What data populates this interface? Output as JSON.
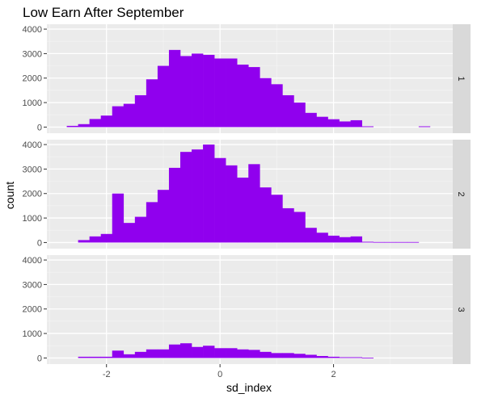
{
  "chart_data": {
    "type": "histogram",
    "title": "Low Earn After September",
    "xlabel": "sd_index",
    "ylabel": "count",
    "xlim": [
      -3.05,
      4.1
    ],
    "ylim": [
      -250,
      4200
    ],
    "x_ticks": [
      {
        "value": -2,
        "label": "-2"
      },
      {
        "value": 0,
        "label": "0"
      },
      {
        "value": 2,
        "label": "2"
      }
    ],
    "y_ticks": [
      {
        "value": 0,
        "label": "0"
      },
      {
        "value": 1000,
        "label": "1000"
      },
      {
        "value": 2000,
        "label": "2000"
      },
      {
        "value": 3000,
        "label": "3000"
      },
      {
        "value": 4000,
        "label": "4000"
      }
    ],
    "grid": true,
    "bar_color": "#9000ee",
    "panel_background": "#ebebeb",
    "strip_background": "#d9d9d9",
    "bin_width": 0.2,
    "bin_start": -2.9,
    "panels": [
      {
        "strip_label": "1",
        "counts": [
          0,
          50,
          120,
          330,
          470,
          850,
          950,
          1300,
          1950,
          2500,
          3150,
          2900,
          3000,
          2950,
          2800,
          2800,
          2550,
          2450,
          2000,
          1750,
          1300,
          1000,
          580,
          420,
          320,
          230,
          280,
          30,
          0,
          0,
          0,
          0,
          30,
          0,
          0
        ]
      },
      {
        "strip_label": "2",
        "counts": [
          0,
          0,
          100,
          250,
          350,
          2000,
          800,
          1050,
          1650,
          2150,
          3050,
          3700,
          3800,
          4000,
          3450,
          3150,
          2650,
          3200,
          2250,
          1950,
          1400,
          1250,
          600,
          400,
          280,
          220,
          250,
          30,
          20,
          20,
          20,
          20,
          0,
          0,
          0
        ]
      },
      {
        "strip_label": "3",
        "counts": [
          0,
          0,
          50,
          50,
          50,
          300,
          150,
          250,
          350,
          350,
          550,
          600,
          450,
          500,
          400,
          400,
          350,
          330,
          250,
          200,
          200,
          170,
          130,
          80,
          50,
          30,
          30,
          10,
          0,
          0,
          0,
          0,
          0,
          0,
          0
        ]
      }
    ]
  }
}
